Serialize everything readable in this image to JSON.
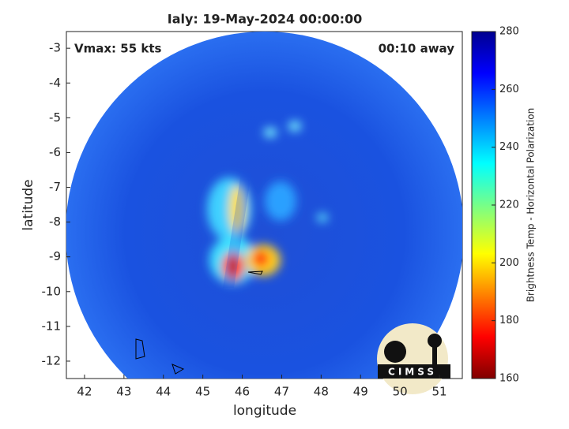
{
  "chart_data": {
    "type": "image",
    "title": "Ialy: 19-May-2024 00:00:00",
    "annotations": [
      "Vmax: 55 kts",
      "00:10 away"
    ],
    "xlabel": "longitude",
    "ylabel": "latitude",
    "xlim": [
      41.54,
      51.58
    ],
    "xticks": [
      42,
      43,
      44,
      45,
      46,
      47,
      48,
      49,
      50,
      51
    ],
    "ylim": [
      -12.5,
      -2.52
    ],
    "yticks": [
      -12,
      -11,
      -10,
      -9,
      -8,
      -7,
      -6,
      -5,
      -4,
      -3
    ],
    "colorbar": {
      "label": "Brightness Temp - Horizontal Polarization",
      "lim": [
        160,
        280
      ],
      "ticks": [
        160,
        180,
        200,
        220,
        240,
        260,
        280
      ]
    },
    "logo_text": "CIMSS"
  }
}
